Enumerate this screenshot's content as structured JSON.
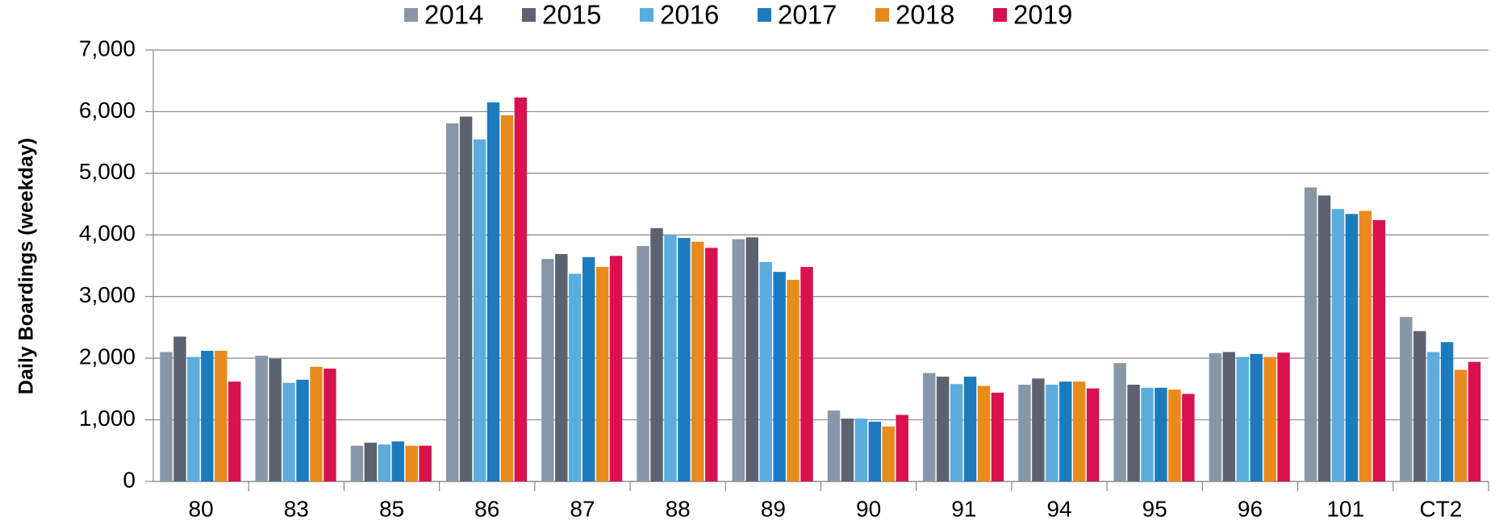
{
  "chart_data": {
    "type": "bar",
    "ylabel": "Daily Boardings (weekday)",
    "categories": [
      "80",
      "83",
      "85",
      "86",
      "87",
      "88",
      "89",
      "90",
      "91",
      "94",
      "95",
      "96",
      "101",
      "CT2"
    ],
    "series": [
      {
        "name": "2014",
        "color": "#8797a8",
        "values": [
          2100,
          2040,
          580,
          5810,
          3610,
          3820,
          3930,
          1150,
          1760,
          1570,
          1920,
          2080,
          4770,
          2670
        ]
      },
      {
        "name": "2015",
        "color": "#5b6370",
        "values": [
          2350,
          1990,
          630,
          5920,
          3690,
          4110,
          3960,
          1020,
          1700,
          1670,
          1570,
          2100,
          4640,
          2440
        ]
      },
      {
        "name": "2016",
        "color": "#5badde",
        "values": [
          2020,
          1600,
          600,
          5550,
          3370,
          4000,
          3560,
          1020,
          1580,
          1570,
          1520,
          2020,
          4420,
          2100
        ]
      },
      {
        "name": "2017",
        "color": "#1b7bbd",
        "values": [
          2120,
          1650,
          650,
          6150,
          3640,
          3950,
          3400,
          970,
          1700,
          1620,
          1520,
          2070,
          4340,
          2260
        ]
      },
      {
        "name": "2018",
        "color": "#e88a1c",
        "values": [
          2120,
          1860,
          580,
          5940,
          3480,
          3890,
          3270,
          890,
          1550,
          1620,
          1490,
          2020,
          4390,
          1810
        ]
      },
      {
        "name": "2019",
        "color": "#d8114f",
        "values": [
          1620,
          1830,
          580,
          6230,
          3660,
          3790,
          3480,
          1080,
          1440,
          1510,
          1420,
          2090,
          4240,
          1940
        ]
      }
    ],
    "ylim": [
      0,
      7000
    ],
    "yticks": [
      0,
      {
        "value": 1000,
        "label": "1,000"
      },
      {
        "value": 2000,
        "label": "2,000"
      },
      {
        "value": 3000,
        "label": "3,000"
      },
      {
        "value": 4000,
        "label": "4,000"
      },
      {
        "value": 5000,
        "label": "5,000"
      },
      {
        "value": 6000,
        "label": "6,000"
      },
      {
        "value": 7000,
        "label": "7,000"
      }
    ],
    "grid": true,
    "legend": "top"
  }
}
